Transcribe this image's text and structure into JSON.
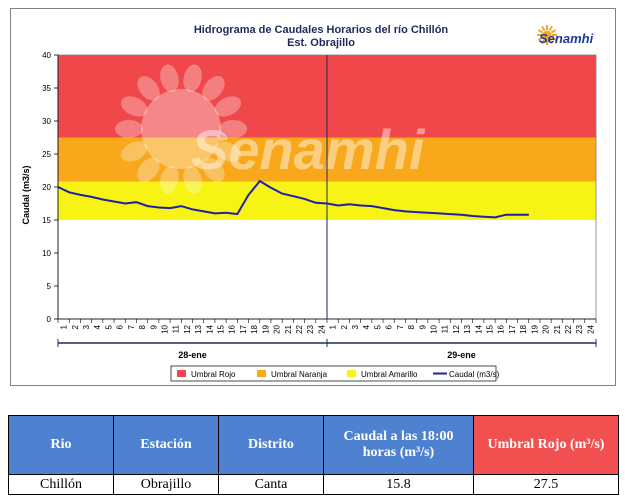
{
  "chart_data": {
    "type": "line",
    "title": "Hidrograma de Caudales Horarios del río Chillón",
    "subtitle": "Est. Obrajillo",
    "ylabel": "Caudal  (m3/s)",
    "ylim": [
      0,
      40
    ],
    "yticks": [
      "0",
      "5",
      "10",
      "15",
      "20",
      "25",
      "30",
      "35",
      "40"
    ],
    "xlim": [
      0,
      48
    ],
    "xticks": [
      "1",
      "2",
      "3",
      "4",
      "5",
      "6",
      "7",
      "8",
      "9",
      "10",
      "11",
      "12",
      "13",
      "14",
      "15",
      "16",
      "17",
      "18",
      "19",
      "20",
      "21",
      "22",
      "23",
      "24",
      "1",
      "2",
      "3",
      "4",
      "5",
      "6",
      "7",
      "8",
      "9",
      "10",
      "11",
      "12",
      "13",
      "14",
      "15",
      "16",
      "17",
      "18",
      "19",
      "20",
      "21",
      "22",
      "23",
      "24"
    ],
    "date_labels": [
      "28-ene",
      "29-ene"
    ],
    "thresholds": [
      {
        "name": "Umbral Rojo",
        "from": 27.5,
        "to": 40,
        "color": "#f0474a"
      },
      {
        "name": "Umbral Naranja",
        "from": 20.8,
        "to": 27.5,
        "color": "#f8a81a"
      },
      {
        "name": "Umbral Amarillo",
        "from": 15,
        "to": 20.8,
        "color": "#f7f315"
      }
    ],
    "series": [
      {
        "name": "Caudal (m3/s)",
        "color": "#1f1fa8",
        "x": [
          0,
          1,
          2,
          3,
          4,
          5,
          6,
          7,
          8,
          9,
          10,
          11,
          12,
          13,
          14,
          15,
          16,
          17,
          18,
          19,
          20,
          21,
          22,
          23,
          24,
          25,
          26,
          27,
          28,
          29,
          30,
          31,
          32,
          33,
          34,
          35,
          36,
          37,
          38,
          39,
          40,
          41,
          42
        ],
        "y": [
          20.0,
          19.2,
          18.8,
          18.5,
          18.1,
          17.8,
          17.5,
          17.7,
          17.1,
          16.9,
          16.8,
          17.1,
          16.6,
          16.3,
          16.0,
          16.1,
          15.9,
          18.8,
          20.9,
          19.9,
          19.0,
          18.6,
          18.2,
          17.6,
          17.5,
          17.2,
          17.4,
          17.2,
          17.1,
          16.8,
          16.5,
          16.3,
          16.2,
          16.1,
          16.0,
          15.9,
          15.8,
          15.6,
          15.5,
          15.4,
          15.8,
          15.8,
          15.8
        ]
      }
    ],
    "legend": [
      {
        "label": "Umbral Rojo",
        "color": "#f0474a",
        "kind": "box"
      },
      {
        "label": "Umbral Naranja",
        "color": "#f8a81a",
        "kind": "box"
      },
      {
        "label": "Umbral Amarillo",
        "color": "#f7f315",
        "kind": "box"
      },
      {
        "label": "Caudal (m3/s)",
        "color": "#1f1fa8",
        "kind": "line"
      }
    ],
    "legend_position": "bottom",
    "grid": false
  },
  "brand": {
    "name": "Senamhi",
    "watermark": "Senamhi"
  },
  "table": {
    "headers": [
      {
        "text": "Rio"
      },
      {
        "text": "Estación"
      },
      {
        "text": "Distrito"
      },
      {
        "text": "Caudal a las 18:00 horas (m³/s)"
      },
      {
        "text": "Umbral Rojo (m³/s)"
      }
    ],
    "row": [
      "Chillón",
      "Obrajillo",
      "Canta",
      "15.8",
      "27.5"
    ]
  }
}
